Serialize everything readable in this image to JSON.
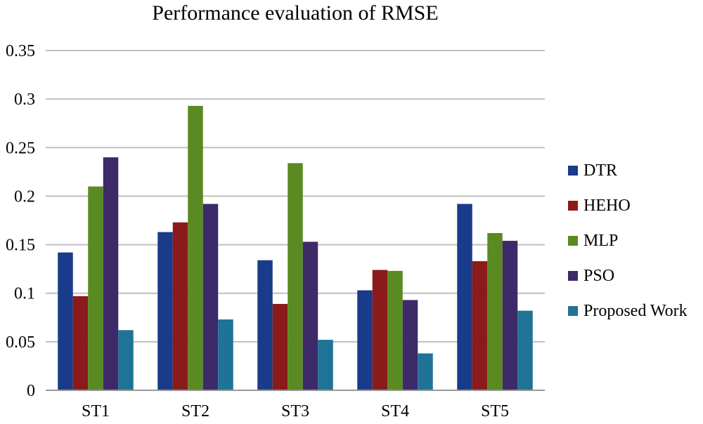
{
  "chart_data": {
    "type": "bar",
    "title": "Performance evaluation of RMSE",
    "xlabel": "",
    "ylabel": "",
    "ylim": [
      0,
      0.35
    ],
    "yticks": [
      "0",
      "0.05",
      "0.1",
      "0.15",
      "0.2",
      "0.25",
      "0.3",
      "0.35"
    ],
    "categories": [
      "ST1",
      "ST2",
      "ST3",
      "ST4",
      "ST5"
    ],
    "grid": true,
    "legend_position": "right",
    "series": [
      {
        "name": "DTR",
        "color": "#1a3a8a",
        "values": [
          0.142,
          0.163,
          0.134,
          0.103,
          0.192
        ]
      },
      {
        "name": "HEHO",
        "color": "#8b1a1a",
        "values": [
          0.097,
          0.173,
          0.089,
          0.124,
          0.133
        ]
      },
      {
        "name": "MLP",
        "color": "#5a8a22",
        "values": [
          0.21,
          0.293,
          0.234,
          0.123,
          0.162
        ]
      },
      {
        "name": "PSO",
        "color": "#3d2a68",
        "values": [
          0.24,
          0.192,
          0.153,
          0.093,
          0.154
        ]
      },
      {
        "name": "Proposed Work",
        "color": "#1f7396",
        "values": [
          0.062,
          0.073,
          0.052,
          0.038,
          0.082
        ]
      }
    ]
  }
}
